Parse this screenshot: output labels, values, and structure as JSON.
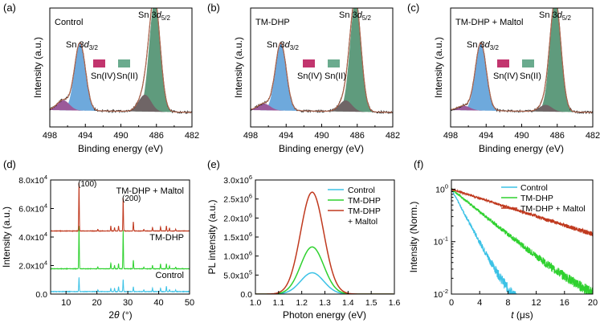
{
  "colors": {
    "sn4": "#c2356e",
    "sn2": "#6aab8e",
    "sn2_fill": "#5f9b7d",
    "sn32_fill": "#6ea9dc",
    "sn4_fill": "#9b5a9a",
    "envelope": "#b0674f",
    "control": "#3cc2e6",
    "tmdhp": "#2fd12f",
    "maltol": "#c0391e"
  },
  "chart_data": [
    {
      "panel": "(a)",
      "type": "area",
      "sample": "Control",
      "xlabel": "Binding energy (eV)",
      "ylabel": "Intensity (a.u.)",
      "xlim": [
        498,
        482
      ],
      "xticks": [
        "498",
        "494",
        "490",
        "486",
        "482"
      ],
      "peak_labels": [
        {
          "base": "Sn 3",
          "orb": "d",
          "sub": "3/2"
        },
        {
          "base": "Sn 3",
          "orb": "d",
          "sub": "5/2"
        }
      ],
      "legend": [
        "Sn(IV)",
        "Sn(II)"
      ],
      "components": {
        "sn32_center": 494.6,
        "sn32_height": 0.6,
        "sn52_center": 486.2,
        "sn52_height": 0.98,
        "sn4a_center": 496.5,
        "sn4a_height": 0.09,
        "sn4b_center": 487.3,
        "sn4b_height": 0.15
      }
    },
    {
      "panel": "(b)",
      "type": "area",
      "sample": "TM-DHP",
      "xlabel": "Binding energy (eV)",
      "ylabel": "Intensity (a.u.)",
      "xlim": [
        498,
        482
      ],
      "xticks": [
        "498",
        "494",
        "490",
        "486",
        "482"
      ],
      "peak_labels": [
        {
          "base": "Sn 3",
          "orb": "d",
          "sub": "3/2"
        },
        {
          "base": "Sn 3",
          "orb": "d",
          "sub": "5/2"
        }
      ],
      "legend": [
        "Sn(IV)",
        "Sn(II)"
      ],
      "components": {
        "sn32_center": 494.6,
        "sn32_height": 0.6,
        "sn52_center": 486.2,
        "sn52_height": 0.98,
        "sn4a_center": 496.5,
        "sn4a_height": 0.06,
        "sn4b_center": 487.3,
        "sn4b_height": 0.1
      }
    },
    {
      "panel": "(c)",
      "type": "area",
      "sample": "TM-DHP + Maltol",
      "xlabel": "Binding energy (eV)",
      "ylabel": "Intensity (a.u.)",
      "xlim": [
        498,
        482
      ],
      "xticks": [
        "498",
        "494",
        "490",
        "486",
        "482"
      ],
      "peak_labels": [
        {
          "base": "Sn 3",
          "orb": "d",
          "sub": "3/2"
        },
        {
          "base": "Sn 3",
          "orb": "d",
          "sub": "5/2"
        }
      ],
      "legend": [
        "Sn(IV)",
        "Sn(II)"
      ],
      "components": {
        "sn32_center": 494.6,
        "sn32_height": 0.6,
        "sn52_center": 486.2,
        "sn52_height": 0.98,
        "sn4a_center": 496.5,
        "sn4a_height": 0.04,
        "sn4b_center": 487.3,
        "sn4b_height": 0.06
      }
    },
    {
      "panel": "(d)",
      "type": "line",
      "xlabel_base": "2",
      "xlabel_theta": "θ",
      "xlabel_unit": " (°)",
      "ylabel": "Intensity (a.u.)",
      "xlim": [
        5,
        50
      ],
      "xticks": [
        "10",
        "20",
        "30",
        "40",
        "50"
      ],
      "ylim": [
        0,
        80000
      ],
      "yticks": [
        {
          "m": "0.0",
          "e": ""
        },
        {
          "m": "2.0x10",
          "e": "4"
        },
        {
          "m": "4.0x10",
          "e": "4"
        },
        {
          "m": "6.0x10",
          "e": "4"
        },
        {
          "m": "8.0x10",
          "e": "4"
        }
      ],
      "peak_positions": [
        14.2,
        24.5,
        28.5,
        31.8,
        40.6,
        43.5
      ],
      "series": [
        {
          "name": "Control",
          "offset": 1500,
          "peak_heights": [
            10000,
            2200,
            8500,
            3500,
            2500,
            1500
          ]
        },
        {
          "name": "TM-DHP",
          "offset": 17500,
          "peak_heights": [
            30000,
            4000,
            27000,
            6000,
            3500,
            2000
          ]
        },
        {
          "name": "TM-DHP + Maltol",
          "offset": 44000,
          "peak_heights": [
            33500,
            3500,
            23000,
            6500,
            3000,
            2000
          ]
        }
      ],
      "annotations": [
        "(100)",
        "(200)"
      ]
    },
    {
      "panel": "(e)",
      "type": "line",
      "xlabel": "Photon energy (eV)",
      "ylabel": "PL intensity (a.u.)",
      "xlim": [
        1.0,
        1.6
      ],
      "xticks": [
        "1.0",
        "1.1",
        "1.2",
        "1.3",
        "1.4",
        "1.5",
        "1.6"
      ],
      "ylim": [
        0,
        3000000
      ],
      "yticks": [
        {
          "m": "0.0",
          "e": ""
        },
        {
          "m": "5.0x10",
          "e": "5"
        },
        {
          "m": "1.0x10",
          "e": "6"
        },
        {
          "m": "1.5x10",
          "e": "6"
        },
        {
          "m": "2.0x10",
          "e": "6"
        },
        {
          "m": "2.5x10",
          "e": "6"
        },
        {
          "m": "3.0x10",
          "e": "6"
        }
      ],
      "peak_center": 1.245,
      "series": [
        {
          "name": "Control",
          "peak": 560000
        },
        {
          "name": "TM-DHP",
          "peak": 1240000
        },
        {
          "name": "TM-DHP",
          "name_line2": "+ Maltol",
          "peak": 2680000
        }
      ]
    },
    {
      "panel": "(f)",
      "type": "line",
      "xlabel_italic": "t",
      "xlabel_unit": " (μs)",
      "ylabel": "Intensity (Norm.)",
      "xlim": [
        0,
        20
      ],
      "xticks": [
        "0",
        "4",
        "8",
        "12",
        "16",
        "20"
      ],
      "ylim_log": [
        0.01,
        1.5
      ],
      "yticks": [
        {
          "m": "10",
          "e": "-2",
          "v": 0.01
        },
        {
          "m": "10",
          "e": "-1",
          "v": 0.1
        },
        {
          "m": "10",
          "e": "0",
          "v": 1
        }
      ],
      "series": [
        {
          "name": "Control",
          "tau_us": 1.7
        },
        {
          "name": "TM-DHP",
          "tau_us": 4.0
        },
        {
          "name": "TM-DHP + Maltol",
          "tau_us": 10.0
        }
      ]
    }
  ]
}
